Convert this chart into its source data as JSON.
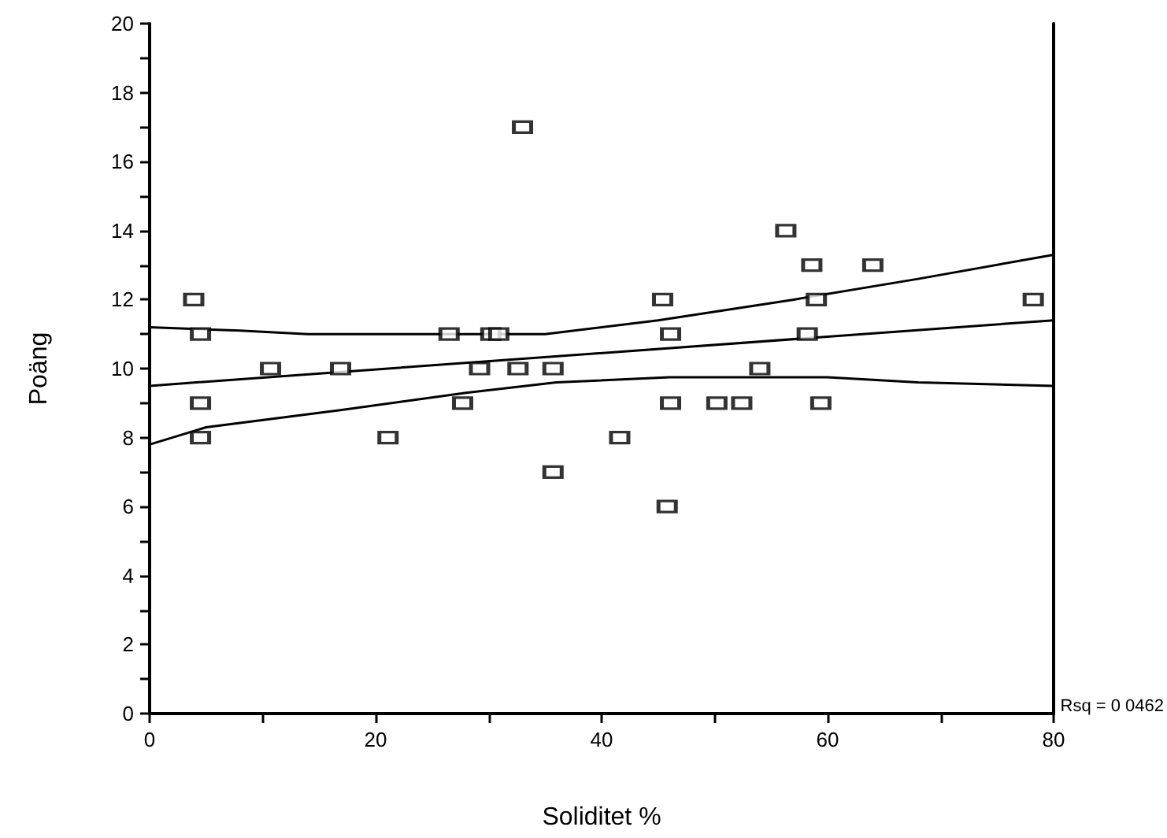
{
  "chart_data": {
    "type": "scatter",
    "xlabel": "Soliditet %",
    "ylabel": "Poäng",
    "annotations": [
      "Rsq = 0 0462"
    ],
    "xlim": [
      0,
      80
    ],
    "xticks": [
      0,
      {
        "value": 10,
        "label": null
      },
      20,
      {
        "value": 30,
        "label": null
      },
      40,
      {
        "value": 50,
        "label": null
      },
      60,
      {
        "value": 70,
        "label": null
      },
      80
    ],
    "ylim": [
      0,
      20
    ],
    "yticks": [
      0,
      {
        "value": 1,
        "label": null
      },
      2,
      {
        "value": 3,
        "label": null
      },
      4,
      {
        "value": 5,
        "label": null
      },
      6,
      {
        "value": 7,
        "label": null
      },
      8,
      {
        "value": 9,
        "label": null
      },
      10,
      {
        "value": 11,
        "label": null
      },
      12,
      {
        "value": 13,
        "label": null
      },
      14,
      {
        "value": 15,
        "label": null
      },
      16,
      {
        "value": 17,
        "label": null
      },
      18,
      {
        "value": 19,
        "label": null
      },
      20
    ],
    "grid": false,
    "series": [
      {
        "marker": "square",
        "color": "#000000",
        "x": [
          3.9,
          4.5,
          4.5,
          4.5,
          10.7,
          16.9,
          21.1,
          26.5,
          27.7,
          29.2,
          30.2,
          30.9,
          32.6,
          33.0,
          35.7,
          35.7,
          41.6,
          45.4,
          46.1,
          46.1,
          45.8,
          56.3,
          58.6,
          64.0,
          59.0,
          78.2,
          58.2,
          54.0,
          50.2,
          52.4,
          59.4
        ],
        "values": [
          12,
          11,
          9,
          8,
          10,
          10,
          8,
          11,
          9,
          10,
          11,
          11,
          10,
          17,
          10,
          7,
          8,
          12,
          11,
          9,
          6,
          14,
          13,
          13,
          12,
          12,
          11,
          10,
          9,
          9,
          9
        ]
      },
      {
        "type": "line",
        "marker": "none",
        "line_style": "solid",
        "color": "#000000",
        "x": [
          0,
          80
        ],
        "values": [
          9.5,
          11.4
        ]
      },
      {
        "type": "line",
        "marker": "none",
        "line_style": "solid",
        "color": "#000000",
        "x": [
          0,
          8,
          14,
          35,
          45,
          57,
          68,
          80
        ],
        "values": [
          11.2,
          11.1,
          11.0,
          11.0,
          11.4,
          12.0,
          12.6,
          13.3
        ]
      },
      {
        "type": "line",
        "marker": "none",
        "line_style": "solid",
        "color": "#000000",
        "x": [
          0,
          5,
          17,
          28,
          36,
          46,
          60,
          68,
          80
        ],
        "values": [
          7.8,
          8.3,
          8.8,
          9.3,
          9.6,
          9.75,
          9.75,
          9.6,
          9.5
        ]
      }
    ]
  }
}
